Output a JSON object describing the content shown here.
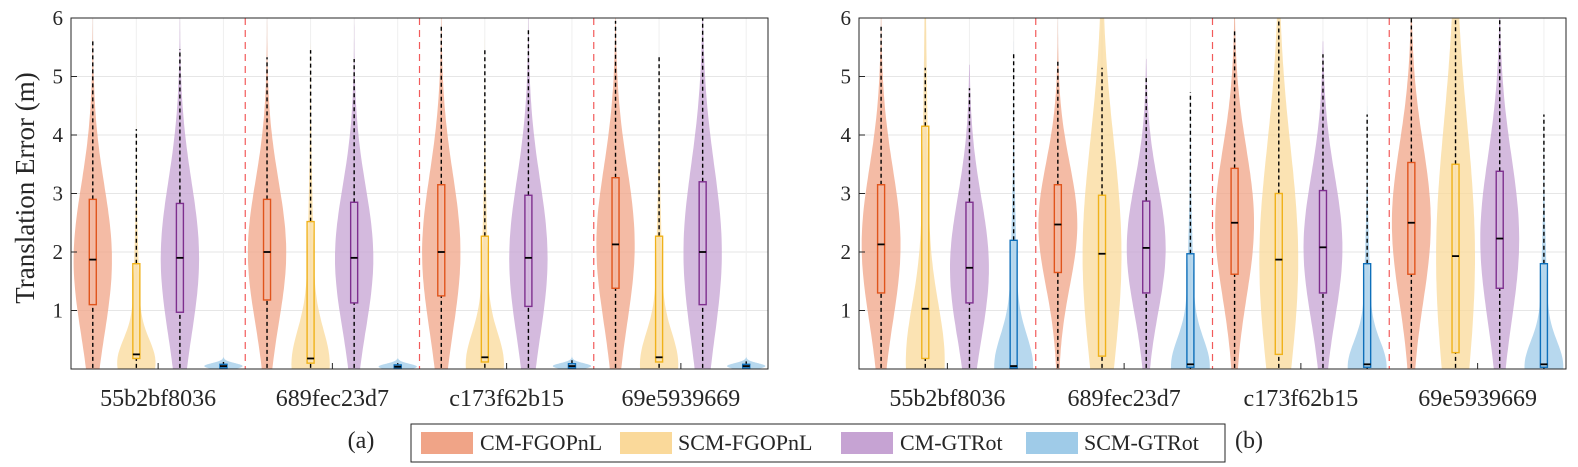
{
  "legend": {
    "entries": [
      {
        "name": "CM-FGOPnL",
        "color": "#f0a487"
      },
      {
        "name": "SCM-FGOPnL",
        "color": "#fad99a"
      },
      {
        "name": "CM-GTRot",
        "color": "#c6a3d3"
      },
      {
        "name": "SCM-GTRot",
        "color": "#9fcbe8"
      }
    ]
  },
  "chart_data": [
    {
      "type": "violin",
      "panel_label": "(a)",
      "ylabel": "Translation Error (m)",
      "ylim": [
        0,
        6
      ],
      "yticks": [
        1,
        2,
        3,
        4,
        5,
        6
      ],
      "grid": true,
      "categories": [
        "55b2bf8036",
        "689fec23d7",
        "c173f62b15",
        "69e5939669"
      ],
      "series": [
        {
          "name": "CM-FGOPnL",
          "color": "#f0a487",
          "edge": "#e0541c",
          "median": [
            1.87,
            2.0,
            2.0,
            2.13
          ],
          "q1": [
            1.1,
            1.18,
            1.25,
            1.38
          ],
          "q3": [
            2.9,
            2.9,
            3.15,
            3.27
          ],
          "whisker_low": [
            0.02,
            0.02,
            0.02,
            0.02
          ],
          "whisker_high": [
            5.6,
            5.33,
            5.9,
            5.95
          ],
          "max": [
            6.0,
            6.0,
            6.0,
            6.0
          ]
        },
        {
          "name": "SCM-FGOPnL",
          "color": "#fad99a",
          "edge": "#f0b21a",
          "median": [
            0.25,
            0.18,
            0.2,
            0.2
          ],
          "q1": [
            0.18,
            0.1,
            0.12,
            0.12
          ],
          "q3": [
            1.8,
            2.52,
            2.27,
            2.27
          ],
          "whisker_low": [
            0.02,
            0.02,
            0.02,
            0.02
          ],
          "whisker_high": [
            4.1,
            5.45,
            5.5,
            5.33
          ],
          "max": [
            4.7,
            5.6,
            5.7,
            5.5
          ]
        },
        {
          "name": "CM-GTRot",
          "color": "#c6a3d3",
          "edge": "#7e2f8e",
          "median": [
            1.9,
            1.9,
            1.9,
            2.0
          ],
          "q1": [
            0.97,
            1.13,
            1.07,
            1.1
          ],
          "q3": [
            2.83,
            2.85,
            2.97,
            3.2
          ],
          "whisker_low": [
            0.02,
            0.02,
            0.02,
            0.02
          ],
          "whisker_high": [
            5.47,
            5.3,
            5.8,
            6.0
          ],
          "max": [
            6.0,
            6.0,
            6.0,
            6.0
          ]
        },
        {
          "name": "SCM-GTRot",
          "color": "#9fcbe8",
          "edge": "#0e6fba",
          "median": [
            0.05,
            0.04,
            0.05,
            0.05
          ],
          "q1": [
            0.02,
            0.02,
            0.02,
            0.02
          ],
          "q3": [
            0.08,
            0.07,
            0.09,
            0.08
          ],
          "whisker_low": [
            0.0,
            0.0,
            0.0,
            0.0
          ],
          "whisker_high": [
            0.12,
            0.1,
            0.15,
            0.13
          ],
          "max": [
            0.2,
            0.18,
            0.22,
            0.2
          ]
        }
      ]
    },
    {
      "type": "violin",
      "panel_label": "(b)",
      "ylabel": "",
      "ylim": [
        0,
        6
      ],
      "yticks": [
        1,
        2,
        3,
        4,
        5,
        6
      ],
      "grid": true,
      "categories": [
        "55b2bf8036",
        "689fec23d7",
        "c173f62b15",
        "69e5939669"
      ],
      "series": [
        {
          "name": "CM-FGOPnL",
          "color": "#f0a487",
          "edge": "#e0541c",
          "median": [
            2.13,
            2.47,
            2.5,
            2.5
          ],
          "q1": [
            1.3,
            1.65,
            1.62,
            1.62
          ],
          "q3": [
            3.15,
            3.15,
            3.43,
            3.53
          ],
          "whisker_low": [
            0.02,
            0.02,
            0.02,
            0.02
          ],
          "whisker_high": [
            5.85,
            5.27,
            5.8,
            6.0
          ],
          "max": [
            6.0,
            6.0,
            6.0,
            6.0
          ]
        },
        {
          "name": "SCM-FGOPnL",
          "color": "#fad99a",
          "edge": "#f0b21a",
          "median": [
            1.03,
            1.97,
            1.87,
            1.93
          ],
          "q1": [
            0.18,
            0.22,
            0.25,
            0.28
          ],
          "q3": [
            4.15,
            2.97,
            3.0,
            3.5
          ],
          "whisker_low": [
            0.02,
            0.02,
            0.02,
            0.02
          ],
          "whisker_high": [
            5.15,
            5.15,
            6.0,
            6.0
          ],
          "max": [
            6.0,
            6.0,
            6.0,
            6.0
          ]
        },
        {
          "name": "CM-GTRot",
          "color": "#c6a3d3",
          "edge": "#7e2f8e",
          "median": [
            1.73,
            2.07,
            2.08,
            2.23
          ],
          "q1": [
            1.13,
            1.3,
            1.3,
            1.38
          ],
          "q3": [
            2.85,
            2.87,
            3.05,
            3.38
          ],
          "whisker_low": [
            0.02,
            0.02,
            0.02,
            0.02
          ],
          "whisker_high": [
            4.8,
            5.0,
            5.38,
            6.0
          ],
          "max": [
            5.2,
            5.3,
            5.6,
            6.0
          ]
        },
        {
          "name": "SCM-GTRot",
          "color": "#9fcbe8",
          "edge": "#0e6fba",
          "median": [
            0.05,
            0.08,
            0.08,
            0.08
          ],
          "q1": [
            0.02,
            0.03,
            0.03,
            0.03
          ],
          "q3": [
            2.2,
            1.97,
            1.8,
            1.8
          ],
          "whisker_low": [
            0.0,
            0.0,
            0.0,
            0.0
          ],
          "whisker_high": [
            5.42,
            4.73,
            4.35,
            4.35
          ],
          "max": [
            5.6,
            4.9,
            4.5,
            4.5
          ]
        }
      ]
    }
  ]
}
